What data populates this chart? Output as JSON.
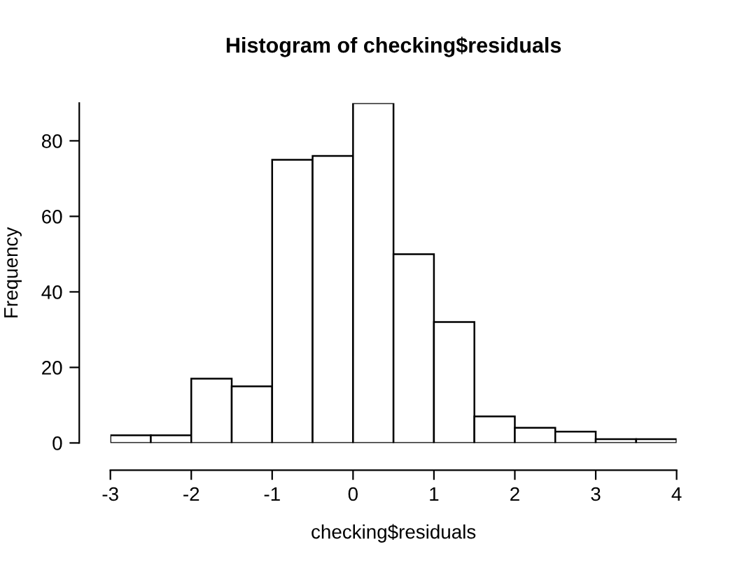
{
  "chart_data": {
    "type": "histogram",
    "title": "Histogram of checking$residuals",
    "xlabel": "checking$residuals",
    "ylabel": "Frequency",
    "bins": [
      -3,
      -2.5,
      -2,
      -1.5,
      -1,
      -0.5,
      0,
      0.5,
      1,
      1.5,
      2,
      2.5,
      3,
      3.5,
      4
    ],
    "values": [
      2,
      2,
      17,
      15,
      75,
      76,
      90,
      50,
      32,
      7,
      4,
      3,
      1,
      1
    ],
    "color": "#ffffff",
    "xlim": [
      -3,
      4
    ],
    "ylim": [
      0,
      90
    ],
    "xticks": [
      -3,
      -2,
      -1,
      0,
      1,
      2,
      3,
      4
    ],
    "yticks": [
      0,
      20,
      40,
      60,
      80
    ],
    "grid": false
  }
}
